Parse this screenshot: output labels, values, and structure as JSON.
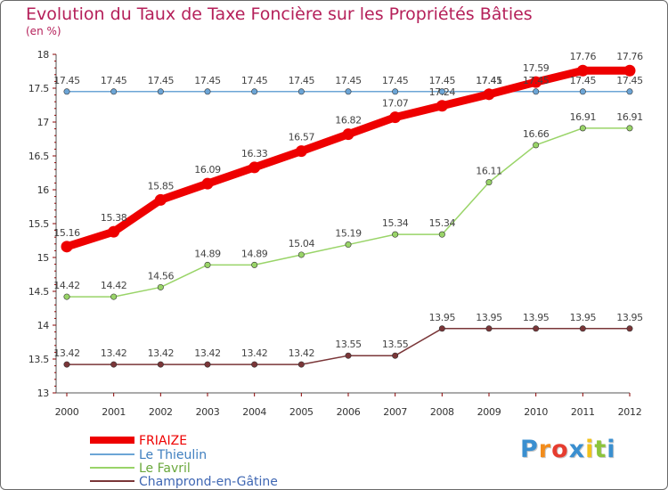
{
  "chart_data": {
    "type": "line",
    "title": "Evolution du Taux de Taxe Foncière sur les Propriétés Bâties",
    "ylabel": "(en %)",
    "xlabel": "",
    "x": [
      "2000",
      "2001",
      "2002",
      "2003",
      "2004",
      "2005",
      "2006",
      "2007",
      "2008",
      "2009",
      "2010",
      "2011",
      "2012"
    ],
    "ylim": [
      13,
      18
    ],
    "yticks": [
      "13",
      "13.5",
      "14",
      "14.5",
      "15",
      "15.5",
      "16",
      "16.5",
      "17",
      "17.5",
      "18"
    ],
    "grid": false,
    "legend_position": "bottom-left",
    "series": [
      {
        "name": "FRIAIZE",
        "color": "#ee0000",
        "values": [
          15.16,
          15.38,
          15.85,
          16.09,
          16.33,
          16.57,
          16.82,
          17.07,
          17.24,
          17.41,
          17.59,
          17.76,
          17.76
        ],
        "labels": [
          "15.16",
          "15.38",
          "15.85",
          "16.09",
          "16.33",
          "16.57",
          "16.82",
          "17.07",
          "17.24",
          "17.41",
          "17.59",
          "17.76",
          "17.76"
        ]
      },
      {
        "name": "Le Thieulin",
        "color": "#6ca5d6",
        "values": [
          17.45,
          17.45,
          17.45,
          17.45,
          17.45,
          17.45,
          17.45,
          17.45,
          17.45,
          17.45,
          17.45,
          17.45,
          17.45
        ],
        "labels": [
          "17.45",
          "17.45",
          "17.45",
          "17.45",
          "17.45",
          "17.45",
          "17.45",
          "17.45",
          "17.45",
          "17.45",
          "17.45",
          "17.45",
          "17.45"
        ]
      },
      {
        "name": "Le Favril",
        "color": "#99d468",
        "values": [
          14.42,
          14.42,
          14.56,
          14.89,
          14.89,
          15.04,
          15.19,
          15.34,
          15.34,
          16.11,
          16.66,
          16.91,
          16.91
        ],
        "labels": [
          "14.42",
          "14.42",
          "14.56",
          "14.89",
          "14.89",
          "15.04",
          "15.19",
          "15.34",
          "15.34",
          "16.11",
          "16.66",
          "16.91",
          "16.91"
        ]
      },
      {
        "name": "Champrond-en-Gâtine",
        "color": "#7a3638",
        "values": [
          13.42,
          13.42,
          13.42,
          13.42,
          13.42,
          13.42,
          13.55,
          13.55,
          13.95,
          13.95,
          13.95,
          13.95,
          13.95
        ],
        "labels": [
          "13.42",
          "13.42",
          "13.42",
          "13.42",
          "13.42",
          "13.42",
          "13.55",
          "13.55",
          "13.95",
          "13.95",
          "13.95",
          "13.95",
          "13.95"
        ]
      }
    ]
  },
  "logo": {
    "letters": [
      "P",
      "r",
      "o",
      "x",
      "i",
      "t",
      "i"
    ],
    "colors": [
      "#3a8fd0",
      "#f28c1c",
      "#e63c2f",
      "#3a8fd0",
      "#f2c21c",
      "#8cc43c",
      "#3a8fd0"
    ]
  }
}
